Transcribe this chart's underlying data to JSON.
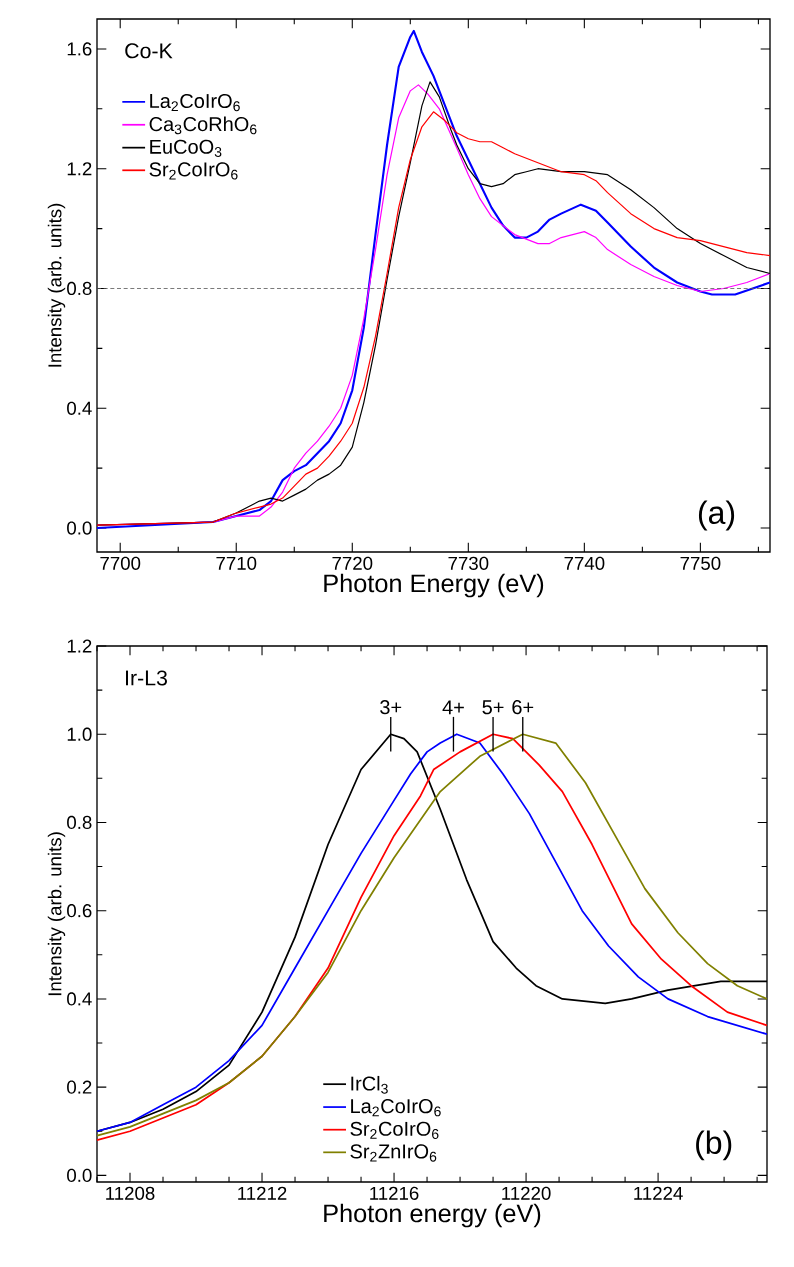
{
  "chart_data": [
    {
      "type": "line",
      "xlabel": "Photon Energy (eV)",
      "ylabel": "Intensity (arb. units)",
      "annotations": [
        "Co-K",
        "(a)"
      ],
      "xlim": [
        7698,
        7756
      ],
      "ylim": [
        -0.08,
        1.7
      ],
      "xticks": [
        7700,
        {
          "value": 7705,
          "label": null
        },
        7710,
        {
          "value": 7715,
          "label": null
        },
        7720,
        {
          "value": 7725,
          "label": null
        },
        7730,
        {
          "value": 7735,
          "label": null
        },
        7740,
        {
          "value": 7745,
          "label": null
        },
        7750,
        {
          "value": 7755,
          "label": null
        }
      ],
      "yticks": [
        {
          "value": 0,
          "label": "0.0"
        },
        {
          "value": 0.2,
          "label": null
        },
        0.4,
        {
          "value": 0.6,
          "label": null
        },
        0.8,
        {
          "value": 1.0,
          "label": null
        },
        1.2,
        {
          "value": 1.4,
          "label": null
        },
        1.6
      ],
      "legend": "top left",
      "ref_lines": [
        {
          "axis": "y",
          "value": 0.8,
          "color": "#555555",
          "line_style": "dashed"
        }
      ],
      "series": [
        {
          "name": "La$_{2}$CoIrO$_{6}$",
          "color": "#0000ff",
          "x": [
            7698,
            7708,
            7710,
            7712,
            7713,
            7714,
            7715,
            7716,
            7717,
            7718,
            7719,
            7720,
            7721,
            7722,
            7723,
            7724,
            7725,
            7725.3,
            7726,
            7727,
            7728,
            7729,
            7730,
            7731,
            7732,
            7733,
            7734,
            7735,
            7736,
            7737,
            7738,
            7739.7,
            7741,
            7742,
            7744,
            7746,
            7748,
            7750,
            7751,
            7753,
            7756
          ],
          "values": [
            0.0,
            0.02,
            0.04,
            0.06,
            0.09,
            0.16,
            0.19,
            0.21,
            0.25,
            0.29,
            0.35,
            0.46,
            0.67,
            0.98,
            1.28,
            1.54,
            1.64,
            1.66,
            1.59,
            1.51,
            1.41,
            1.31,
            1.23,
            1.15,
            1.07,
            1.01,
            0.97,
            0.97,
            0.99,
            1.03,
            1.05,
            1.08,
            1.06,
            1.02,
            0.94,
            0.87,
            0.82,
            0.79,
            0.78,
            0.78,
            0.82
          ]
        },
        {
          "name": "Ca$_{3}$CoRhO$_{6}$",
          "color": "#ff00ff",
          "x": [
            7698,
            7708,
            7710,
            7712,
            7713,
            7714,
            7715,
            7716,
            7717,
            7718,
            7719,
            7720,
            7721,
            7722,
            7723,
            7724,
            7725,
            7725.7,
            7726.5,
            7727.5,
            7729,
            7730,
            7731,
            7732,
            7734,
            7736,
            7737,
            7738,
            7740,
            7741,
            7742,
            7744,
            7746,
            7748,
            7750,
            7752,
            7754,
            7756
          ],
          "values": [
            0.01,
            0.02,
            0.04,
            0.04,
            0.07,
            0.12,
            0.2,
            0.25,
            0.29,
            0.34,
            0.4,
            0.51,
            0.7,
            0.93,
            1.18,
            1.37,
            1.46,
            1.48,
            1.45,
            1.4,
            1.27,
            1.18,
            1.1,
            1.04,
            0.98,
            0.95,
            0.95,
            0.97,
            0.99,
            0.97,
            0.93,
            0.88,
            0.84,
            0.81,
            0.79,
            0.8,
            0.82,
            0.85
          ]
        },
        {
          "name": "EuCoO$_{3}$",
          "color": "#000000",
          "x": [
            7698,
            7708,
            7710,
            7712,
            7713,
            7714,
            7715,
            7716,
            7717,
            7718,
            7719,
            7720,
            7721,
            7722,
            7723,
            7724,
            7725,
            7726,
            7726.7,
            7727.5,
            7728.5,
            7729,
            7730,
            7731,
            7732,
            7733,
            7734,
            7735,
            7736,
            7738,
            7740,
            7742,
            7744,
            7746,
            7748,
            7750,
            7752,
            7754,
            7756
          ],
          "values": [
            0.01,
            0.02,
            0.05,
            0.09,
            0.1,
            0.09,
            0.11,
            0.13,
            0.16,
            0.18,
            0.21,
            0.27,
            0.42,
            0.61,
            0.83,
            1.04,
            1.22,
            1.41,
            1.49,
            1.44,
            1.33,
            1.28,
            1.2,
            1.15,
            1.14,
            1.15,
            1.18,
            1.19,
            1.2,
            1.19,
            1.19,
            1.18,
            1.13,
            1.07,
            1.0,
            0.95,
            0.91,
            0.87,
            0.85
          ]
        },
        {
          "name": "Sr$_{2}$CoIrO$_{6}$",
          "color": "#ff0000",
          "x": [
            7698,
            7708,
            7710,
            7712,
            7713,
            7714,
            7715,
            7716,
            7717,
            7718,
            7719,
            7720,
            7721,
            7722,
            7723,
            7724,
            7725,
            7726,
            7727,
            7728,
            7729,
            7730,
            7731,
            7732,
            7733,
            7734,
            7736,
            7738,
            7740,
            7741,
            7742,
            7744,
            7746,
            7748,
            7750,
            7752,
            7754,
            7756
          ],
          "values": [
            0.01,
            0.02,
            0.05,
            0.07,
            0.08,
            0.1,
            0.14,
            0.18,
            0.2,
            0.24,
            0.29,
            0.35,
            0.47,
            0.64,
            0.85,
            1.07,
            1.23,
            1.34,
            1.39,
            1.36,
            1.32,
            1.3,
            1.29,
            1.29,
            1.27,
            1.25,
            1.22,
            1.19,
            1.18,
            1.16,
            1.12,
            1.05,
            1.0,
            0.97,
            0.96,
            0.94,
            0.92,
            0.91
          ]
        }
      ]
    },
    {
      "type": "line",
      "xlabel": "Photon energy (eV)",
      "ylabel": "Intensity (arb. units)",
      "annotations": [
        "Ir-L3",
        "(b)",
        {
          "text": "3+",
          "x": 11215.9,
          "y": 1.0
        },
        {
          "text": "4+",
          "x": 11217.8,
          "y": 1.0
        },
        {
          "text": "5+",
          "x": 11219.0,
          "y": 1.0
        },
        {
          "text": "6+",
          "x": 11219.9,
          "y": 1.0
        }
      ],
      "xlim": [
        11207,
        11227.3
      ],
      "ylim": [
        -0.015,
        1.2
      ],
      "xticks": [
        {
          "value": 11207,
          "label": null
        },
        11208,
        {
          "value": 11209,
          "label": null
        },
        {
          "value": 11210,
          "label": null
        },
        {
          "value": 11211,
          "label": null
        },
        11212,
        {
          "value": 11213,
          "label": null
        },
        {
          "value": 11214,
          "label": null
        },
        {
          "value": 11215,
          "label": null
        },
        11216,
        {
          "value": 11217,
          "label": null
        },
        {
          "value": 11218,
          "label": null
        },
        {
          "value": 11219,
          "label": null
        },
        11220,
        {
          "value": 11221,
          "label": null
        },
        {
          "value": 11222,
          "label": null
        },
        {
          "value": 11223,
          "label": null
        },
        11224,
        {
          "value": 11225,
          "label": null
        },
        {
          "value": 11226,
          "label": null
        },
        {
          "value": 11227,
          "label": null
        }
      ],
      "yticks": [
        {
          "value": 0,
          "label": "0.0"
        },
        {
          "value": 0.1,
          "label": null
        },
        0.2,
        {
          "value": 0.3,
          "label": null
        },
        0.4,
        {
          "value": 0.5,
          "label": null
        },
        0.6,
        {
          "value": 0.7,
          "label": null
        },
        0.8,
        {
          "value": 0.9,
          "label": null
        },
        {
          "value": 1.0,
          "label": "1.0"
        },
        {
          "value": 1.1,
          "label": null
        },
        1.2
      ],
      "legend": "bottom",
      "series": [
        {
          "name": "IrCl$_{3}$",
          "color": "#000000",
          "x": [
            11207,
            11208,
            11209,
            11210,
            11211,
            11212,
            11213,
            11214,
            11215,
            11215.9,
            11216.3,
            11216.7,
            11217.4,
            11217.8,
            11218.2,
            11218.6,
            11219,
            11219.7,
            11220.3,
            11221.1,
            11222.4,
            11223.2,
            11224.3,
            11225.9,
            11227.3
          ],
          "values": [
            0.1,
            0.12,
            0.15,
            0.19,
            0.25,
            0.37,
            0.54,
            0.75,
            0.92,
            1.0,
            0.99,
            0.96,
            0.83,
            0.75,
            0.67,
            0.6,
            0.53,
            0.47,
            0.43,
            0.4,
            0.39,
            0.4,
            0.42,
            0.44,
            0.44
          ]
        },
        {
          "name": "La$_{2}$CoIrO$_{6}$",
          "color": "#0000ff",
          "x": [
            11207,
            11208,
            11209,
            11210,
            11211,
            11212,
            11213,
            11214,
            11215,
            11216,
            11216.5,
            11217,
            11217.4,
            11217.9,
            11218.6,
            11219.3,
            11220.1,
            11220.9,
            11221.7,
            11222.5,
            11223.4,
            11224.3,
            11225.5,
            11227.3
          ],
          "values": [
            0.1,
            0.12,
            0.16,
            0.2,
            0.26,
            0.34,
            0.47,
            0.6,
            0.73,
            0.85,
            0.91,
            0.96,
            0.98,
            1.0,
            0.98,
            0.91,
            0.82,
            0.71,
            0.6,
            0.52,
            0.45,
            0.4,
            0.36,
            0.32
          ]
        },
        {
          "name": "Sr$_{2}$CoIrO$_{6}$",
          "color": "#ff0000",
          "x": [
            11207,
            11208,
            11209,
            11210,
            11211,
            11212,
            11213,
            11214,
            11215,
            11216,
            11216.8,
            11217.2,
            11218,
            11219,
            11219.6,
            11220.4,
            11221.1,
            11222,
            11223.2,
            11224.1,
            11225,
            11226.1,
            11227.3
          ],
          "values": [
            0.08,
            0.1,
            0.13,
            0.16,
            0.21,
            0.27,
            0.36,
            0.47,
            0.63,
            0.77,
            0.86,
            0.92,
            0.96,
            1.0,
            0.99,
            0.93,
            0.87,
            0.75,
            0.57,
            0.49,
            0.43,
            0.37,
            0.34
          ]
        },
        {
          "name": "Sr$_{2}$ZnIrO$_{6}$",
          "color": "#808000",
          "x": [
            11207,
            11208,
            11209,
            11210,
            11211,
            11212,
            11213,
            11214,
            11215,
            11216,
            11217.4,
            11218.6,
            11219.9,
            11220.9,
            11221.8,
            11222.7,
            11223.6,
            11224.6,
            11225.5,
            11226.4,
            11227.3
          ],
          "values": [
            0.09,
            0.11,
            0.14,
            0.17,
            0.21,
            0.27,
            0.36,
            0.46,
            0.6,
            0.72,
            0.87,
            0.95,
            1.0,
            0.98,
            0.89,
            0.77,
            0.65,
            0.55,
            0.48,
            0.43,
            0.4
          ]
        }
      ]
    }
  ]
}
